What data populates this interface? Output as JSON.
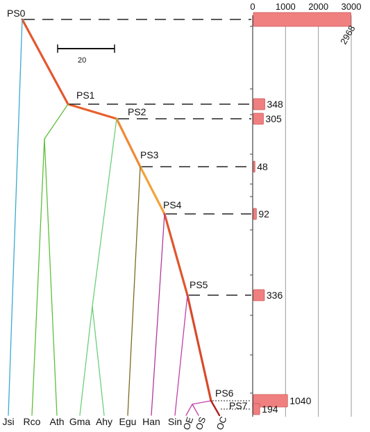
{
  "chart_data": {
    "type": "tree-bar",
    "title": "",
    "scale_bar": {
      "label": "20"
    },
    "leaves": [
      "Jsi",
      "Rco",
      "Ath",
      "Gma",
      "Ahy",
      "Egu",
      "Han",
      "Sin",
      "OE",
      "OS",
      "OC"
    ],
    "nodes": [
      "PS0",
      "PS1",
      "PS2",
      "PS3",
      "PS4",
      "PS5",
      "PS6",
      "PS7"
    ],
    "bar_axis": {
      "ticks": [
        0,
        1000,
        2000,
        3000
      ],
      "xlim": [
        0,
        3000
      ]
    },
    "bars": [
      {
        "node": "PS0",
        "value": 2968,
        "label": "2968"
      },
      {
        "node": "PS1",
        "value": 348,
        "label": "348"
      },
      {
        "node": "PS2",
        "value": 305,
        "label": "305"
      },
      {
        "node": "PS3",
        "value": 48,
        "label": "48"
      },
      {
        "node": "PS4",
        "value": 92,
        "label": "92"
      },
      {
        "node": "PS5",
        "value": 336,
        "label": "336"
      },
      {
        "node": "PS6",
        "value": 1040,
        "label": "1040"
      },
      {
        "node": "PS7",
        "value": 194,
        "label": "194"
      }
    ],
    "colors": {
      "backbone_dark": "#d84a2a",
      "backbone_light": "#f2a23a",
      "bar_fill": "#f08080",
      "bar_stroke": "#cc5555",
      "Jsi": "#3aa9cf",
      "Rco": "#5cbf3a",
      "Ath": "#5cbf3a",
      "Gma": "#6ccf7a",
      "Ahy": "#6ccf7a",
      "Egu": "#7a6a20",
      "Han": "#b0389a",
      "Sin": "#c040a8",
      "Os_clade": "#c040a8",
      "OC": "#b02020"
    }
  }
}
